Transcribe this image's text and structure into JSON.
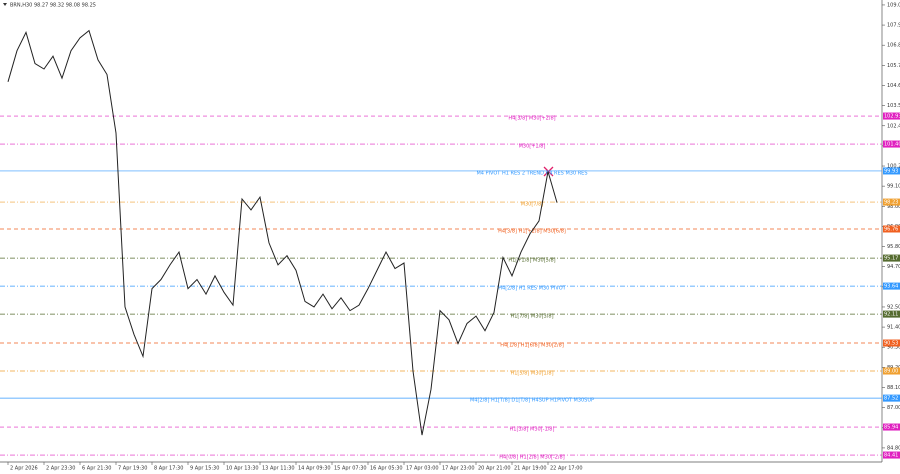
{
  "chart_data": {
    "type": "line",
    "title": "BRN,H30 98.27 98.32 98.08 98.25",
    "categories": [
      "2 Apr 2026",
      null,
      null,
      null,
      "2 Apr 23:30",
      null,
      null,
      null,
      "6 Apr 21:30",
      null,
      null,
      null,
      "7 Apr 19:30",
      null,
      null,
      null,
      "8 Apr 17:30",
      null,
      null,
      null,
      "9 Apr 15:30",
      null,
      null,
      null,
      "10 Apr 13:30",
      null,
      null,
      null,
      "13 Apr 11:30",
      null,
      null,
      null,
      "14 Apr 09:30",
      null,
      null,
      null,
      "15 Apr 07:30",
      null,
      null,
      null,
      "16 Apr 05:30",
      null,
      null,
      null,
      "17 Apr 03:00",
      null,
      null,
      null,
      "17 Apr 23:00",
      null,
      null,
      null,
      "20 Apr 21:00",
      null,
      null,
      null,
      "21 Apr 19:00",
      null,
      null,
      null,
      "22 Apr 17:00",
      null
    ],
    "values": [
      104.8,
      106.5,
      107.5,
      105.8,
      105.5,
      106.2,
      105.0,
      106.5,
      107.2,
      107.6,
      106.0,
      105.2,
      102.0,
      92.5,
      91.0,
      89.8,
      93.5,
      94.0,
      94.8,
      95.5,
      93.5,
      94.0,
      93.2,
      94.2,
      93.3,
      92.6,
      98.4,
      97.8,
      98.5,
      96.0,
      94.8,
      95.3,
      94.5,
      92.8,
      92.5,
      93.2,
      92.4,
      93.0,
      92.3,
      92.6,
      93.5,
      94.5,
      95.5,
      94.6,
      94.9,
      89.0,
      85.5,
      88.0,
      92.3,
      91.8,
      90.5,
      91.6,
      92.0,
      91.2,
      92.2,
      95.2,
      94.2,
      95.5,
      96.5,
      97.2,
      99.9,
      98.2
    ],
    "color": "#222222",
    "ylim": [
      84.03,
      109.27
    ],
    "yticks": [
      {
        "value": 109,
        "label": "109.00"
      },
      {
        "value": 107.9,
        "label": "107.90"
      },
      {
        "value": 106.8,
        "label": "106.80"
      },
      {
        "value": 105.7,
        "label": "105.70"
      },
      {
        "value": 104.6,
        "label": "104.60"
      },
      {
        "value": 103.5,
        "label": "103.50"
      },
      {
        "value": 102.4,
        "label": "102.40"
      },
      {
        "value": 101.3,
        "label": "101.30"
      },
      {
        "value": 100.2,
        "label": "100.20"
      },
      {
        "value": 99.1,
        "label": "99.10"
      },
      {
        "value": 98,
        "label": "98.00"
      },
      {
        "value": 96.9,
        "label": "96.90"
      },
      {
        "value": 95.8,
        "label": "95.80"
      },
      {
        "value": 94.7,
        "label": "94.70"
      },
      {
        "value": 93.6,
        "label": "93.60"
      },
      {
        "value": 92.5,
        "label": "92.50"
      },
      {
        "value": 91.4,
        "label": "91.40"
      },
      {
        "value": 90.3,
        "label": "90.30"
      },
      {
        "value": 89.2,
        "label": "89.20"
      },
      {
        "value": 88.1,
        "label": "88.10"
      },
      {
        "value": 87,
        "label": "87.00"
      },
      {
        "value": 85.9,
        "label": "85.90"
      },
      {
        "value": 84.8,
        "label": "84.80"
      }
    ],
    "levels": [
      {
        "value": 102.93,
        "price_label": "102.93",
        "label": "H4[3/8] M30[+2/8]",
        "color": "#e020c0",
        "style": "dashed"
      },
      {
        "value": 101.4,
        "price_label": "101.40",
        "label": "M30[+1/8]",
        "color": "#e020c0",
        "style": "dashdot"
      },
      {
        "value": 99.93,
        "price_label": "99.93",
        "label": "M4 PIVOT H1 RES 2 TREND H4 RES M30 RES",
        "color": "#3399ff",
        "style": "solid"
      },
      {
        "value": 98.23,
        "price_label": "98.23",
        "label": "M30[7/8]",
        "color": "#f0a030",
        "style": "dashdot"
      },
      {
        "value": 96.76,
        "price_label": "96.76",
        "label": "H4[3/8] H1[+2/8] M30[6/8]",
        "color": "#f06020",
        "style": "dashed"
      },
      {
        "value": 95.17,
        "price_label": "95.17",
        "label": "H1[+1/8] M30[5/8]",
        "color": "#556b2f",
        "style": "dashdot"
      },
      {
        "value": 93.64,
        "price_label": "93.64",
        "label": "H4[2/8] H1 RES M30 PIVOT",
        "color": "#3399ff",
        "style": "dashdot"
      },
      {
        "value": 92.11,
        "price_label": "92.11",
        "label": "H1[7/8] M30[3/8]",
        "color": "#556b2f",
        "style": "dashdot"
      },
      {
        "value": 90.53,
        "price_label": "90.53",
        "label": "H4[1/8] H1[6/8] M30[2/8]",
        "color": "#f06020",
        "style": "dashed"
      },
      {
        "value": 89.0,
        "price_label": "89.00",
        "label": "H1[5/8] M30[1/8]",
        "color": "#f0a030",
        "style": "dashdot"
      },
      {
        "value": 87.52,
        "price_label": "87.52",
        "label": "M4[2/8] H1[T/8] D1[T/8] H4SUP H1PIVOT M30SUP",
        "color": "#3399ff",
        "style": "solid"
      },
      {
        "value": 85.94,
        "price_label": "85.94",
        "label": "H1[3/8] M30[-1/8]",
        "color": "#e020c0",
        "style": "dashed"
      },
      {
        "value": 84.41,
        "price_label": "84.41",
        "label": "H4[0/8] H1[2/8] M30[-2/8]",
        "color": "#e020c0",
        "style": "dashdot"
      }
    ]
  }
}
